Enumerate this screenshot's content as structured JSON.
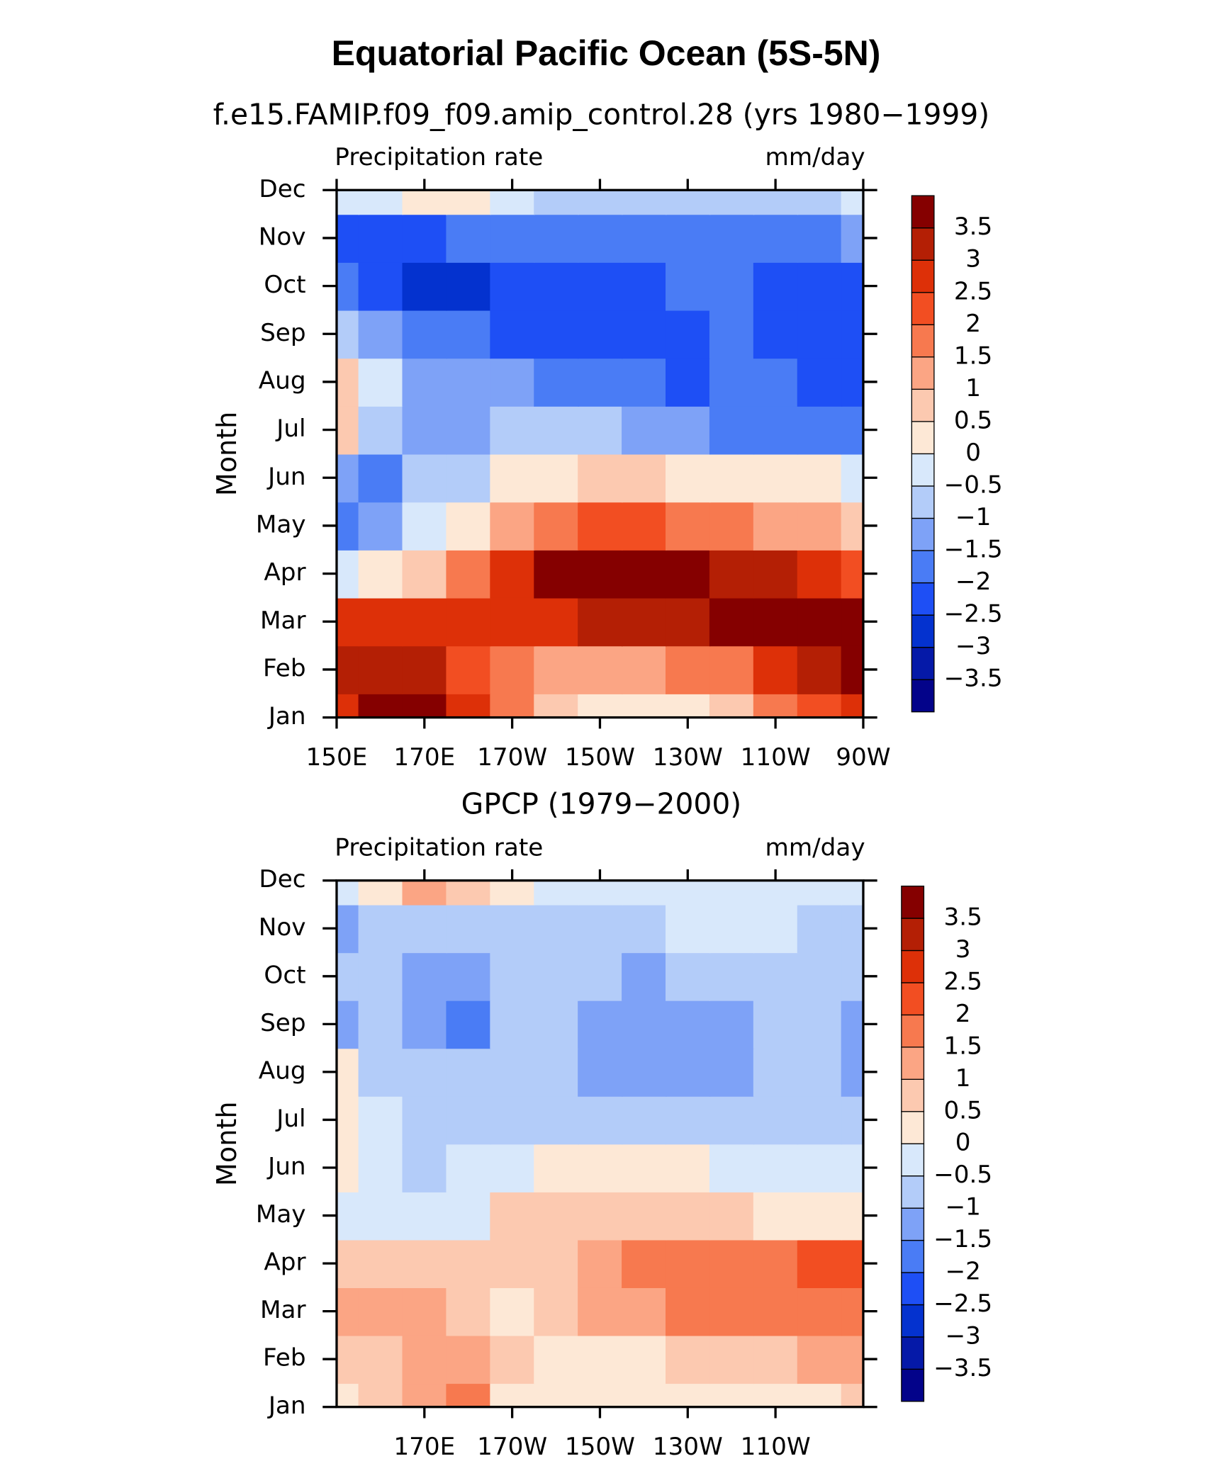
{
  "title": "Equatorial Pacific Ocean (5S-5N)",
  "chart_data": [
    {
      "type": "contour",
      "title": "f.e15.FAMIP.f09_f09.amip_control.28 (yrs 1980−1999)",
      "left_label": "Precipitation rate",
      "right_label": "mm/day",
      "ylabel": "Month",
      "x": [
        150,
        160,
        170,
        180,
        190,
        200,
        210,
        220,
        230,
        240,
        250,
        260,
        270
      ],
      "xlim": [
        150,
        270
      ],
      "xticks": [
        {
          "value": 150,
          "label": "150E"
        },
        {
          "value": 170,
          "label": "170E"
        },
        {
          "value": 190,
          "label": "170W"
        },
        {
          "value": 210,
          "label": "150W"
        },
        {
          "value": 230,
          "label": "130W"
        },
        {
          "value": 250,
          "label": "110W"
        },
        {
          "value": 270,
          "label": "90W"
        }
      ],
      "categories": [
        "Jan",
        "Feb",
        "Mar",
        "Apr",
        "May",
        "Jun",
        "Jul",
        "Aug",
        "Sep",
        "Oct",
        "Nov",
        "Dec"
      ],
      "z": [
        [
          2.8,
          3.8,
          3.6,
          2.5,
          1.5,
          0.8,
          0.3,
          0.2,
          0.4,
          0.8,
          1.5,
          2.2,
          2.5
        ],
        [
          3.2,
          3.3,
          3.0,
          2.2,
          1.7,
          1.2,
          1.0,
          1.2,
          1.5,
          1.8,
          2.5,
          3.3,
          3.8
        ],
        [
          2.5,
          2.8,
          2.8,
          2.5,
          2.5,
          2.8,
          3.0,
          3.2,
          3.3,
          3.5,
          3.8,
          3.9,
          3.9
        ],
        [
          -0.5,
          0.2,
          0.8,
          1.8,
          2.8,
          3.6,
          3.8,
          3.8,
          3.7,
          3.4,
          3.0,
          2.6,
          2.3
        ],
        [
          -1.8,
          -1.2,
          -0.5,
          0.3,
          1.2,
          1.8,
          2.0,
          2.0,
          1.9,
          1.7,
          1.4,
          1.1,
          0.8
        ],
        [
          -1.5,
          -2.0,
          -1.0,
          -0.6,
          0,
          0.3,
          0.5,
          0.5,
          0.4,
          0.3,
          0.2,
          0,
          -0.3
        ],
        [
          0.6,
          -0.8,
          -1.5,
          -1.2,
          -0.8,
          -0.8,
          -0.8,
          -1.3,
          -1.5,
          -1.6,
          -1.8,
          -1.8,
          -2.0
        ],
        [
          0.7,
          -0.5,
          -1.3,
          -1.2,
          -1.4,
          -1.7,
          -1.8,
          -2.0,
          -2.2,
          -1.8,
          -2.0,
          -2.2,
          -2.3
        ],
        [
          -1.0,
          -1.4,
          -1.8,
          -2.0,
          -2.2,
          -2.5,
          -2.5,
          -2.5,
          -2.3,
          -2.0,
          -2.2,
          -2.4,
          -2.4
        ],
        [
          -1.8,
          -2.5,
          -3.0,
          -2.8,
          -2.4,
          -2.3,
          -2.3,
          -2.2,
          -1.8,
          -1.8,
          -2.2,
          -2.4,
          -2.4
        ],
        [
          -2.3,
          -2.3,
          -2.2,
          -2.0,
          -1.7,
          -1.8,
          -1.8,
          -1.8,
          -1.7,
          -1.7,
          -1.6,
          -1.6,
          -1.5
        ],
        [
          -0.5,
          -0.3,
          0.2,
          0.2,
          -0.5,
          -0.8,
          -1.0,
          -1.0,
          -1.0,
          -1.0,
          -0.8,
          -0.6,
          -0.4
        ]
      ],
      "levels": [
        {
          "value": -3.5,
          "label": "−3.5"
        },
        {
          "value": -3,
          "label": "−3"
        },
        {
          "value": -2.5,
          "label": "−2.5"
        },
        {
          "value": -2,
          "label": "−2"
        },
        {
          "value": -1.5,
          "label": "−1.5"
        },
        {
          "value": -1,
          "label": "−1"
        },
        {
          "value": -0.5,
          "label": "−0.5"
        },
        0,
        0.5,
        1,
        1.5,
        2,
        2.5,
        3,
        3.5
      ],
      "colors": [
        "#03038a",
        "#0519a8",
        "#0432cf",
        "#1e4ff5",
        "#4a7cf5",
        "#7ea2f7",
        "#b3ccf9",
        "#d8e8fb",
        "#fde8d6",
        "#fcc9b0",
        "#fba584",
        "#f7794f",
        "#f24e22",
        "#dd3008",
        "#b41f05",
        "#850000"
      ]
    },
    {
      "type": "contour",
      "title": "GPCP (1979−2000)",
      "left_label": "Precipitation rate",
      "right_label": "mm/day",
      "ylabel": "Month",
      "x": [
        150,
        160,
        170,
        180,
        190,
        200,
        210,
        220,
        230,
        240,
        250,
        260,
        270
      ],
      "xlim": [
        150,
        270
      ],
      "xticks": [
        {
          "value": 170,
          "label": "170E"
        },
        {
          "value": 190,
          "label": "170W"
        },
        {
          "value": 210,
          "label": "150W"
        },
        {
          "value": 230,
          "label": "130W"
        },
        {
          "value": 250,
          "label": "110W"
        }
      ],
      "categories": [
        "Jan",
        "Feb",
        "Mar",
        "Apr",
        "May",
        "Jun",
        "Jul",
        "Aug",
        "Sep",
        "Oct",
        "Nov",
        "Dec"
      ],
      "z": [
        [
          0.3,
          0.5,
          1.2,
          1.5,
          0.3,
          0.2,
          0.2,
          0.1,
          0.1,
          0.2,
          0.3,
          0.4,
          0.6
        ],
        [
          0.6,
          0.8,
          1.3,
          1.2,
          0.5,
          0.3,
          0.3,
          0.4,
          0.5,
          0.7,
          0.9,
          1.1,
          1.2
        ],
        [
          1.0,
          1.2,
          1.1,
          0.9,
          0.4,
          0.6,
          1.0,
          1.4,
          1.6,
          1.7,
          1.5,
          1.8,
          1.8
        ],
        [
          0.5,
          0.9,
          0.8,
          0.6,
          0.5,
          0.7,
          1.2,
          1.6,
          1.9,
          1.9,
          1.6,
          2.0,
          2.0
        ],
        [
          -0.3,
          -0.2,
          -0.4,
          -0.3,
          0.5,
          0.6,
          0.6,
          0.6,
          0.5,
          0.5,
          0.3,
          0.2,
          0.1
        ],
        [
          0.3,
          -0.2,
          -0.6,
          -0.5,
          -0.2,
          0.2,
          0.3,
          0.2,
          0,
          -0.2,
          -0.3,
          -0.4,
          -0.5
        ],
        [
          0.4,
          -0.5,
          -0.7,
          -0.7,
          -0.6,
          -0.7,
          -0.8,
          -0.8,
          -0.8,
          -0.8,
          -0.8,
          -0.9,
          -1.0
        ],
        [
          0.3,
          -0.6,
          -0.8,
          -0.9,
          -0.9,
          -1.0,
          -1.2,
          -1.3,
          -1.2,
          -1.2,
          -0.8,
          -0.9,
          -1.2
        ],
        [
          -1.2,
          -0.8,
          -1.5,
          -1.6,
          -0.9,
          -1.0,
          -1.2,
          -1.3,
          -1.2,
          -1.2,
          -0.7,
          -0.8,
          -1.1
        ],
        [
          -1.0,
          -0.8,
          -1.2,
          -1.5,
          -1.0,
          -0.8,
          -1.0,
          -1.1,
          -1.0,
          -1.0,
          -0.7,
          -0.8,
          -1.0
        ],
        [
          -1.1,
          -0.9,
          -0.8,
          -0.7,
          -0.6,
          -0.6,
          -0.7,
          -0.6,
          -0.5,
          -0.5,
          -0.5,
          -0.6,
          -0.7
        ],
        [
          -0.2,
          0.3,
          1.0,
          0.8,
          0.2,
          -0.2,
          -0.4,
          -0.4,
          -0.4,
          -0.5,
          -0.5,
          -0.5,
          -0.5
        ]
      ],
      "levels": [
        {
          "value": -3.5,
          "label": "−3.5"
        },
        {
          "value": -3,
          "label": "−3"
        },
        {
          "value": -2.5,
          "label": "−2.5"
        },
        {
          "value": -2,
          "label": "−2"
        },
        {
          "value": -1.5,
          "label": "−1.5"
        },
        {
          "value": -1,
          "label": "−1"
        },
        {
          "value": -0.5,
          "label": "−0.5"
        },
        0,
        0.5,
        1,
        1.5,
        2,
        2.5,
        3,
        3.5
      ],
      "colors": [
        "#03038a",
        "#0519a8",
        "#0432cf",
        "#1e4ff5",
        "#4a7cf5",
        "#7ea2f7",
        "#b3ccf9",
        "#d8e8fb",
        "#fde8d6",
        "#fcc9b0",
        "#fba584",
        "#f7794f",
        "#f24e22",
        "#dd3008",
        "#b41f05",
        "#850000"
      ]
    }
  ]
}
